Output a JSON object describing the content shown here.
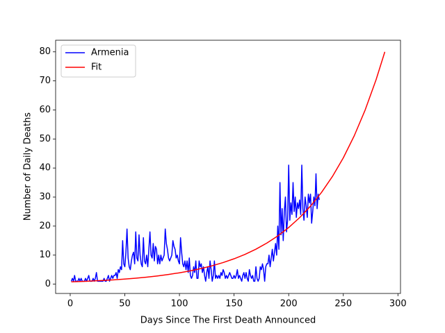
{
  "chart_data": {
    "type": "line",
    "xlabel": "Days Since The First Death Announced",
    "ylabel": "Number of Daily Deaths",
    "xlim": [
      -13.35,
      302.35
    ],
    "ylim": [
      -3.2,
      84
    ],
    "xticks": [
      0,
      50,
      100,
      150,
      200,
      250,
      300
    ],
    "yticks": [
      0,
      10,
      20,
      30,
      40,
      50,
      60,
      70,
      80
    ],
    "legend": "upper left",
    "series": [
      {
        "name": "Armenia",
        "color": "#0000ff",
        "x": [
          1,
          2,
          3,
          4,
          5,
          6,
          7,
          8,
          9,
          10,
          11,
          12,
          13,
          14,
          15,
          16,
          17,
          18,
          19,
          20,
          21,
          22,
          23,
          24,
          25,
          26,
          27,
          28,
          29,
          30,
          31,
          32,
          33,
          34,
          35,
          36,
          37,
          38,
          39,
          40,
          41,
          42,
          43,
          44,
          45,
          46,
          47,
          48,
          49,
          50,
          51,
          52,
          53,
          54,
          55,
          56,
          57,
          58,
          59,
          60,
          61,
          62,
          63,
          64,
          65,
          66,
          67,
          68,
          69,
          70,
          71,
          72,
          73,
          74,
          75,
          76,
          77,
          78,
          79,
          80,
          81,
          82,
          83,
          84,
          85,
          86,
          87,
          88,
          89,
          90,
          91,
          92,
          93,
          94,
          95,
          96,
          97,
          98,
          99,
          100,
          101,
          102,
          103,
          104,
          105,
          106,
          107,
          108,
          109,
          110,
          111,
          112,
          113,
          114,
          115,
          116,
          117,
          118,
          119,
          120,
          121,
          122,
          123,
          124,
          125,
          126,
          127,
          128,
          129,
          130,
          131,
          132,
          133,
          134,
          135,
          136,
          137,
          138,
          139,
          140,
          141,
          142,
          143,
          144,
          145,
          146,
          147,
          148,
          149,
          150,
          151,
          152,
          153,
          154,
          155,
          156,
          157,
          158,
          159,
          160,
          161,
          162,
          163,
          164,
          165,
          166,
          167,
          168,
          169,
          170,
          171,
          172,
          173,
          174,
          175,
          176,
          177,
          178,
          179,
          180,
          181,
          182,
          183,
          184,
          185,
          186,
          187,
          188,
          189,
          190,
          191,
          192,
          193,
          194,
          195,
          196,
          197,
          198,
          199,
          200,
          201,
          202,
          203,
          204,
          205,
          206,
          207,
          208,
          209,
          210,
          211,
          212,
          213,
          214,
          215,
          216,
          217,
          218,
          219,
          220,
          221,
          222,
          223,
          224,
          225,
          226,
          227,
          228
        ],
        "values": [
          1,
          2,
          1,
          3,
          1,
          1,
          1,
          2,
          1,
          2,
          1,
          1,
          1,
          2,
          1,
          2,
          3,
          1,
          1,
          1,
          2,
          1,
          2,
          4,
          1,
          1,
          1,
          1,
          1,
          1,
          2,
          1,
          1,
          2,
          3,
          1,
          2,
          3,
          2,
          3,
          3,
          4,
          2,
          5,
          4,
          6,
          5,
          15,
          7,
          6,
          11,
          19,
          9,
          6,
          5,
          8,
          10,
          11,
          7,
          18,
          9,
          8,
          17,
          10,
          7,
          6,
          16,
          8,
          7,
          10,
          6,
          12,
          18,
          10,
          9,
          14,
          8,
          13,
          12,
          7,
          10,
          7,
          10,
          8,
          9,
          10,
          19,
          14,
          12,
          9,
          8,
          9,
          10,
          15,
          13,
          12,
          9,
          10,
          8,
          7,
          16,
          11,
          7,
          6,
          8,
          5,
          8,
          4,
          9,
          3,
          2,
          3,
          6,
          4,
          8,
          2,
          2,
          8,
          6,
          7,
          4,
          6,
          3,
          1,
          4,
          6,
          2,
          8,
          5,
          1,
          3,
          8,
          2,
          3,
          2,
          3,
          2,
          4,
          3,
          5,
          4,
          2,
          3,
          2,
          3,
          4,
          3,
          2,
          2,
          3,
          2,
          3,
          5,
          2,
          3,
          2,
          1,
          3,
          4,
          2,
          4,
          2,
          1,
          5,
          3,
          2,
          3,
          1,
          1,
          6,
          2,
          1,
          2,
          6,
          5,
          7,
          5,
          1,
          6,
          7,
          7,
          10,
          6,
          9,
          12,
          8,
          11,
          14,
          10,
          20,
          12,
          35,
          17,
          26,
          15,
          25,
          30,
          18,
          22,
          41,
          22,
          28,
          24,
          35,
          25,
          30,
          23,
          28,
          26,
          29,
          24,
          41,
          26,
          22,
          30,
          27,
          23,
          31,
          28,
          31,
          21,
          25,
          30,
          27,
          38,
          26,
          31,
          29
        ]
      },
      {
        "name": "Fit",
        "color": "#ff0000",
        "x": [
          1,
          10,
          20,
          30,
          40,
          50,
          60,
          70,
          80,
          90,
          100,
          110,
          120,
          130,
          140,
          150,
          160,
          170,
          180,
          190,
          200,
          210,
          220,
          230,
          240,
          250,
          260,
          270,
          280,
          288
        ],
        "values": [
          0.8,
          0.92,
          1.09,
          1.27,
          1.5,
          1.76,
          2.06,
          2.42,
          2.84,
          3.34,
          3.92,
          4.6,
          5.4,
          6.34,
          7.45,
          8.74,
          10.26,
          12.05,
          14.15,
          16.61,
          19.5,
          22.9,
          26.89,
          31.57,
          37.06,
          43.51,
          51.09,
          59.98,
          70.42,
          80.0
        ]
      }
    ]
  }
}
